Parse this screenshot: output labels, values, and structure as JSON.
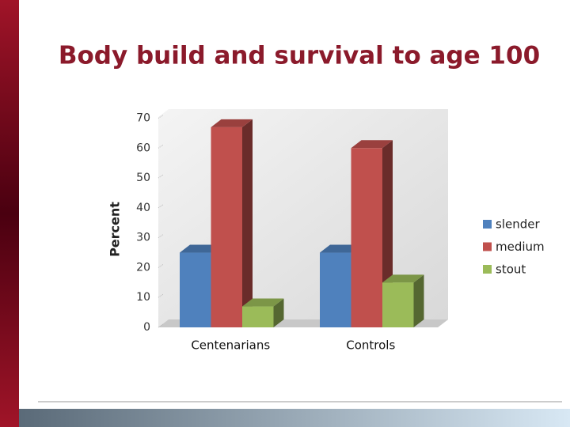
{
  "chart_data": {
    "type": "bar3d",
    "title": "Body build and survival to age 100",
    "y_label": "Percent",
    "categories": [
      "Centenarians",
      "Controls"
    ],
    "series": [
      {
        "name": "slender",
        "color": "#4f81bd",
        "values": [
          25,
          25
        ]
      },
      {
        "name": "medium",
        "color": "#c0504d",
        "values": [
          67,
          60
        ]
      },
      {
        "name": "stout",
        "color": "#9bbb59",
        "values": [
          7,
          15
        ]
      }
    ],
    "ylim": [
      0,
      70
    ],
    "yticks": [
      0,
      10,
      20,
      30,
      40,
      50,
      60,
      70
    ],
    "grid": false,
    "legend": "right"
  }
}
